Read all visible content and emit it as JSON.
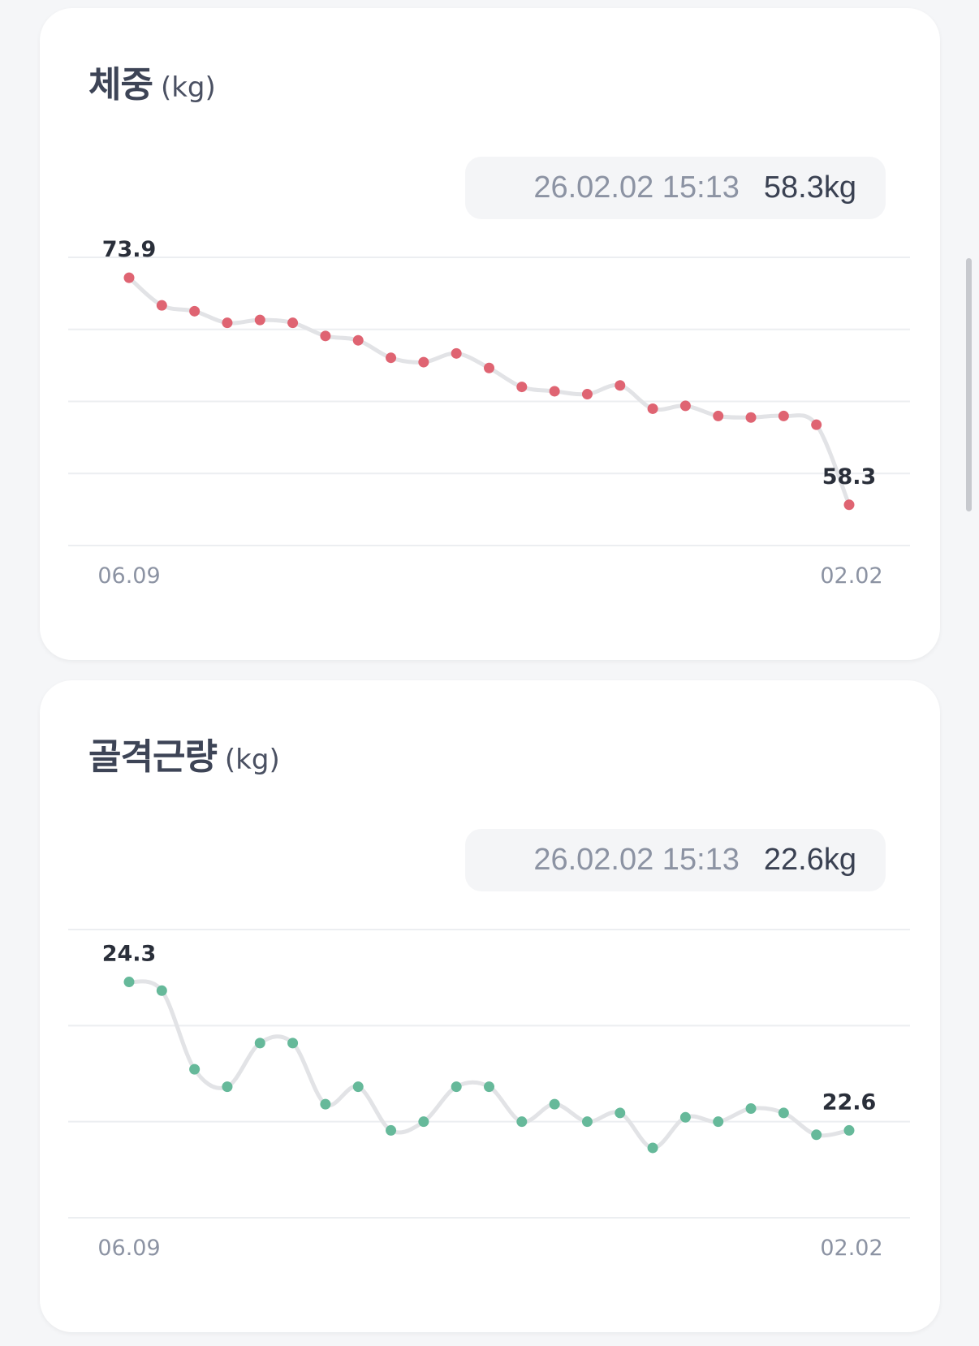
{
  "cards": [
    {
      "title": "체중",
      "unit": "(kg)",
      "readout": {
        "date": "26.02.02 15:13",
        "value": "58.3kg"
      },
      "color": "#df6472",
      "chart_data": {
        "type": "line",
        "x_tick_labels": [
          "06.09",
          "02.02"
        ],
        "values": [
          73.9,
          72.0,
          71.6,
          70.8,
          71.0,
          70.8,
          69.9,
          69.6,
          68.4,
          68.1,
          68.7,
          67.7,
          66.4,
          66.1,
          65.9,
          66.5,
          64.9,
          65.1,
          64.4,
          64.3,
          64.4,
          63.8,
          58.3
        ],
        "start_label": "73.9",
        "end_label": "58.3",
        "ylim": [
          55.5,
          75.3
        ],
        "gridlines": 5,
        "grid": true
      }
    },
    {
      "title": "골격근량",
      "unit": "(kg)",
      "readout": {
        "date": "26.02.02 15:13",
        "value": "22.6kg"
      },
      "color": "#66b99a",
      "chart_data": {
        "type": "line",
        "x_tick_labels": [
          "06.09",
          "02.02"
        ],
        "values": [
          24.3,
          24.2,
          23.3,
          23.1,
          23.6,
          23.6,
          22.9,
          23.1,
          22.6,
          22.7,
          23.1,
          23.1,
          22.7,
          22.9,
          22.7,
          22.8,
          22.4,
          22.75,
          22.7,
          22.85,
          22.8,
          22.55,
          22.6
        ],
        "start_label": "24.3",
        "end_label": "22.6",
        "ylim": [
          21.6,
          24.9
        ],
        "gridlines": 4,
        "grid": true
      }
    }
  ]
}
